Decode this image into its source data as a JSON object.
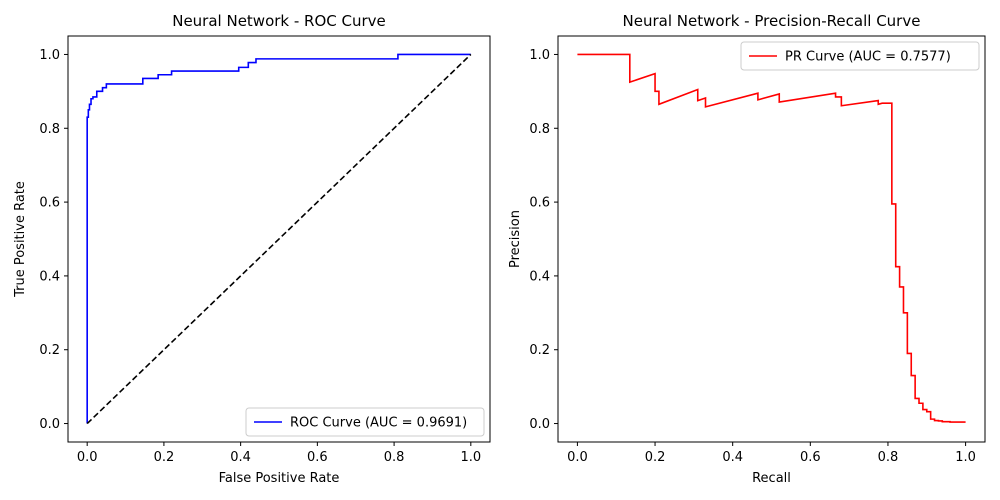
{
  "chart_data": [
    {
      "type": "line",
      "title": "Neural Network - ROC Curve",
      "xlabel": "False Positive Rate",
      "ylabel": "True Positive Rate",
      "xlim": [
        -0.05,
        1.05
      ],
      "ylim": [
        -0.05,
        1.05
      ],
      "xticks": [
        "0.0",
        "0.2",
        "0.4",
        "0.6",
        "0.8",
        "1.0"
      ],
      "yticks": [
        "0.0",
        "0.2",
        "0.4",
        "0.6",
        "0.8",
        "1.0"
      ],
      "grid": false,
      "legend_position": "lower-right",
      "series": [
        {
          "name": "ROC Curve (AUC = 0.9691)",
          "color": "#0000ff",
          "style": "solid",
          "x": [
            0,
            0,
            0.003,
            0.003,
            0.006,
            0.006,
            0.01,
            0.01,
            0.015,
            0.015,
            0.025,
            0.025,
            0.04,
            0.04,
            0.05,
            0.05,
            0.145,
            0.145,
            0.185,
            0.185,
            0.22,
            0.22,
            0.395,
            0.395,
            0.42,
            0.42,
            0.44,
            0.44,
            0.81,
            0.81,
            1.0
          ],
          "y": [
            0,
            0.83,
            0.83,
            0.85,
            0.85,
            0.865,
            0.865,
            0.88,
            0.88,
            0.885,
            0.885,
            0.9,
            0.9,
            0.91,
            0.91,
            0.92,
            0.92,
            0.935,
            0.935,
            0.945,
            0.945,
            0.955,
            0.955,
            0.965,
            0.965,
            0.978,
            0.978,
            0.988,
            0.988,
            1.0,
            1.0
          ]
        },
        {
          "name": "",
          "color": "#000000",
          "style": "dashed",
          "x": [
            0,
            1
          ],
          "y": [
            0,
            1
          ]
        }
      ]
    },
    {
      "type": "line",
      "title": "Neural Network - Precision-Recall Curve",
      "xlabel": "Recall",
      "ylabel": "Precision",
      "xlim": [
        -0.05,
        1.05
      ],
      "ylim": [
        -0.05,
        1.05
      ],
      "xticks": [
        "0.0",
        "0.2",
        "0.4",
        "0.6",
        "0.8",
        "1.0"
      ],
      "yticks": [
        "0.0",
        "0.2",
        "0.4",
        "0.6",
        "0.8",
        "1.0"
      ],
      "grid": false,
      "legend_position": "upper-right",
      "series": [
        {
          "name": "PR Curve (AUC = 0.7577)",
          "color": "#ff0000",
          "style": "solid",
          "x": [
            0,
            0.135,
            0.135,
            0.2,
            0.2,
            0.21,
            0.21,
            0.31,
            0.31,
            0.33,
            0.33,
            0.465,
            0.465,
            0.52,
            0.52,
            0.665,
            0.665,
            0.68,
            0.68,
            0.775,
            0.775,
            0.785,
            0.785,
            0.81,
            0.81,
            0.82,
            0.82,
            0.83,
            0.83,
            0.84,
            0.84,
            0.85,
            0.85,
            0.86,
            0.86,
            0.87,
            0.87,
            0.88,
            0.88,
            0.89,
            0.89,
            0.9,
            0.9,
            0.91,
            0.91,
            0.92,
            0.92,
            0.93,
            0.93,
            0.94,
            0.94,
            0.96,
            0.96,
            1.0
          ],
          "y": [
            1.0,
            1.0,
            0.925,
            0.948,
            0.9,
            0.9,
            0.865,
            0.905,
            0.875,
            0.882,
            0.858,
            0.895,
            0.877,
            0.893,
            0.871,
            0.895,
            0.885,
            0.885,
            0.861,
            0.875,
            0.865,
            0.868,
            0.868,
            0.868,
            0.595,
            0.595,
            0.425,
            0.425,
            0.37,
            0.37,
            0.3,
            0.3,
            0.19,
            0.19,
            0.13,
            0.13,
            0.068,
            0.068,
            0.055,
            0.055,
            0.038,
            0.038,
            0.032,
            0.032,
            0.012,
            0.012,
            0.008,
            0.008,
            0.007,
            0.007,
            0.005,
            0.005,
            0.004,
            0.004
          ]
        }
      ]
    }
  ]
}
